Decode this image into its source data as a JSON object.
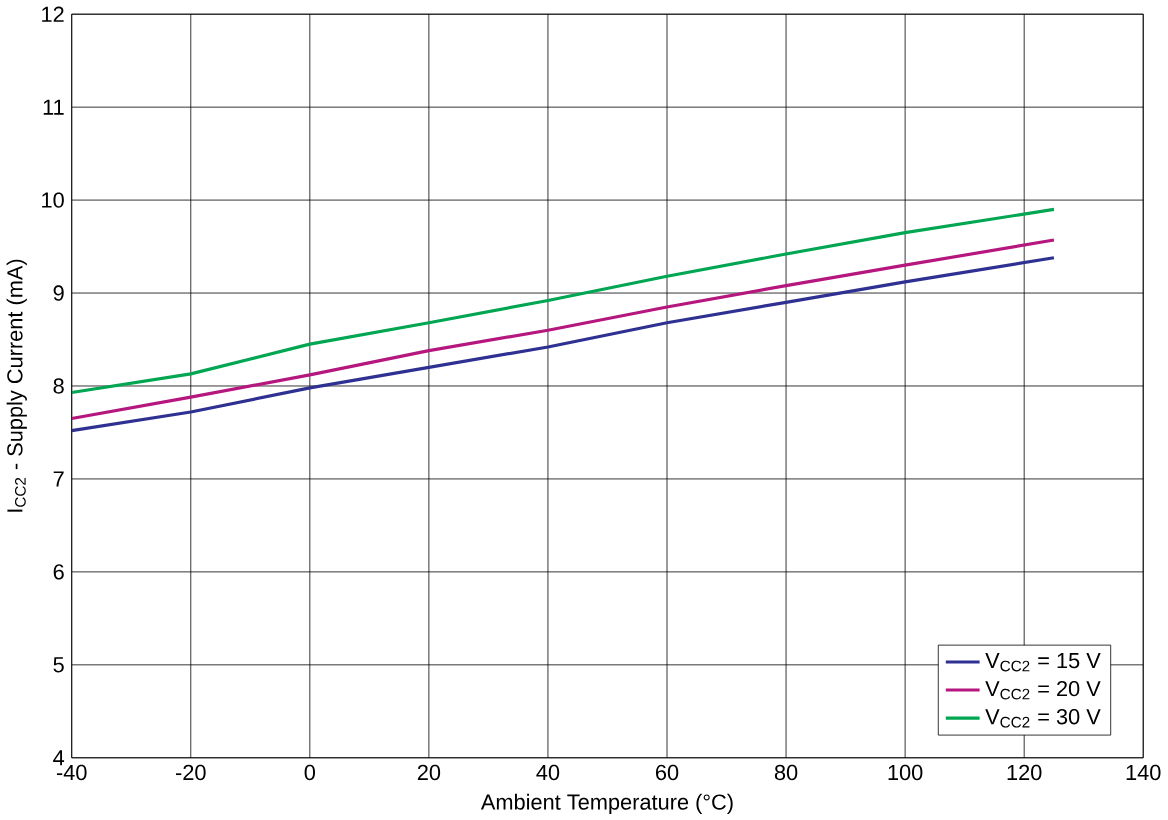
{
  "chart_data": {
    "type": "line",
    "xlabel": "Ambient Temperature (°C)",
    "ylabel": "I$_{CC2}$ - Supply Current (mA)",
    "x": [
      -40,
      -20,
      0,
      20,
      40,
      60,
      80,
      100,
      125
    ],
    "series": [
      {
        "name": "V$_{CC2}$ = 15 V",
        "color": "#2e3192",
        "values": [
          7.52,
          7.72,
          7.98,
          8.2,
          8.42,
          8.68,
          8.9,
          9.12,
          9.38
        ]
      },
      {
        "name": "V$_{CC2}$ = 20 V",
        "color": "#b5177f",
        "values": [
          7.65,
          7.88,
          8.12,
          8.38,
          8.6,
          8.85,
          9.08,
          9.3,
          9.57
        ]
      },
      {
        "name": "V$_{CC2}$ = 30 V",
        "color": "#00a651",
        "values": [
          7.93,
          8.13,
          8.45,
          8.68,
          8.92,
          9.18,
          9.42,
          9.65,
          9.9
        ]
      }
    ],
    "xlim": [
      -40,
      140
    ],
    "ylim": [
      4,
      12
    ],
    "xticks": [
      -40,
      -20,
      0,
      20,
      40,
      60,
      80,
      100,
      120,
      140
    ],
    "yticks": [
      4,
      5,
      6,
      7,
      8,
      9,
      10,
      11,
      12
    ],
    "grid": true,
    "legend": "bottom right",
    "marker": "none",
    "line_style": "solid"
  }
}
